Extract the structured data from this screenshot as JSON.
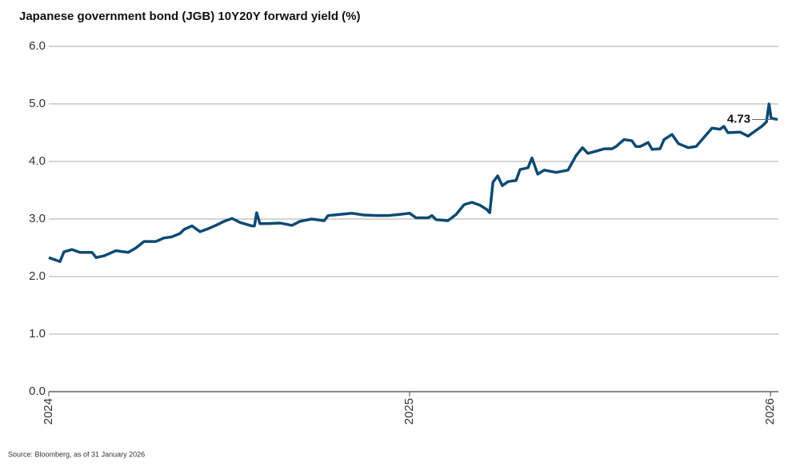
{
  "chart_data": {
    "type": "line",
    "title": "Japanese government bond (JGB) 10Y20Y forward yield (%)",
    "source": "Source: Bloomberg, as of 31 January 2026",
    "x": [
      2024.0,
      2024.031,
      2024.042,
      2024.064,
      2024.086,
      2024.12,
      2024.131,
      2024.153,
      2024.186,
      2024.22,
      2024.242,
      2024.264,
      2024.297,
      2024.319,
      2024.341,
      2024.364,
      2024.375,
      2024.397,
      2024.419,
      2024.441,
      2024.463,
      2024.486,
      2024.508,
      2024.53,
      2024.563,
      2024.57,
      2024.576,
      2024.585,
      2024.608,
      2024.641,
      2024.674,
      2024.696,
      2024.729,
      2024.763,
      2024.774,
      2024.807,
      2024.84,
      2024.874,
      2024.907,
      2024.94,
      2024.973,
      2025.0,
      2025.018,
      2025.051,
      2025.062,
      2025.073,
      2025.106,
      2025.129,
      2025.151,
      2025.173,
      2025.195,
      2025.213,
      2025.222,
      2025.231,
      2025.244,
      2025.257,
      2025.273,
      2025.295,
      2025.306,
      2025.328,
      2025.339,
      2025.355,
      2025.373,
      2025.406,
      2025.439,
      2025.461,
      2025.479,
      2025.494,
      2025.517,
      2025.539,
      2025.561,
      2025.572,
      2025.594,
      2025.616,
      2025.627,
      2025.639,
      2025.661,
      2025.672,
      2025.694,
      2025.705,
      2025.727,
      2025.745,
      2025.772,
      2025.794,
      2025.816,
      2025.838,
      2025.86,
      2025.871,
      2025.882,
      2025.916,
      2025.938,
      2025.96,
      2025.976,
      2025.989,
      2025.996,
      2026.002,
      2026.02
    ],
    "series": [
      {
        "color": "#0d4a73",
        "values": [
          2.33,
          2.26,
          2.43,
          2.47,
          2.42,
          2.42,
          2.33,
          2.36,
          2.45,
          2.42,
          2.5,
          2.61,
          2.61,
          2.67,
          2.69,
          2.75,
          2.82,
          2.88,
          2.78,
          2.83,
          2.89,
          2.96,
          3.01,
          2.94,
          2.88,
          2.88,
          3.11,
          2.92,
          2.92,
          2.93,
          2.89,
          2.96,
          3.0,
          2.97,
          3.06,
          3.08,
          3.1,
          3.07,
          3.06,
          3.06,
          3.08,
          3.1,
          3.02,
          3.02,
          3.06,
          2.99,
          2.97,
          3.08,
          3.25,
          3.29,
          3.24,
          3.17,
          3.11,
          3.64,
          3.75,
          3.58,
          3.65,
          3.67,
          3.86,
          3.89,
          4.06,
          3.78,
          3.85,
          3.81,
          3.85,
          4.1,
          4.24,
          4.14,
          4.18,
          4.22,
          4.22,
          4.26,
          4.38,
          4.36,
          4.26,
          4.26,
          4.33,
          4.21,
          4.22,
          4.38,
          4.47,
          4.31,
          4.24,
          4.26,
          4.42,
          4.58,
          4.56,
          4.61,
          4.5,
          4.51,
          4.44,
          4.54,
          4.61,
          4.69,
          5.0,
          4.75,
          4.73
        ]
      }
    ],
    "annotations": [
      {
        "x": 2026.02,
        "y": 4.73
      }
    ],
    "xlim": [
      2024,
      2026.022
    ],
    "xticks": [
      2024,
      2025,
      2026
    ],
    "ylim": [
      0,
      6
    ],
    "yticks": [
      {
        "value": 0,
        "label": "0.0"
      },
      {
        "value": 1,
        "label": "1.0"
      },
      {
        "value": 2,
        "label": "2.0"
      },
      {
        "value": 3,
        "label": "3.0"
      },
      {
        "value": 4,
        "label": "4.0"
      },
      {
        "value": 5,
        "label": "5.0"
      },
      {
        "value": 6,
        "label": "6.0"
      }
    ],
    "grid": true
  }
}
